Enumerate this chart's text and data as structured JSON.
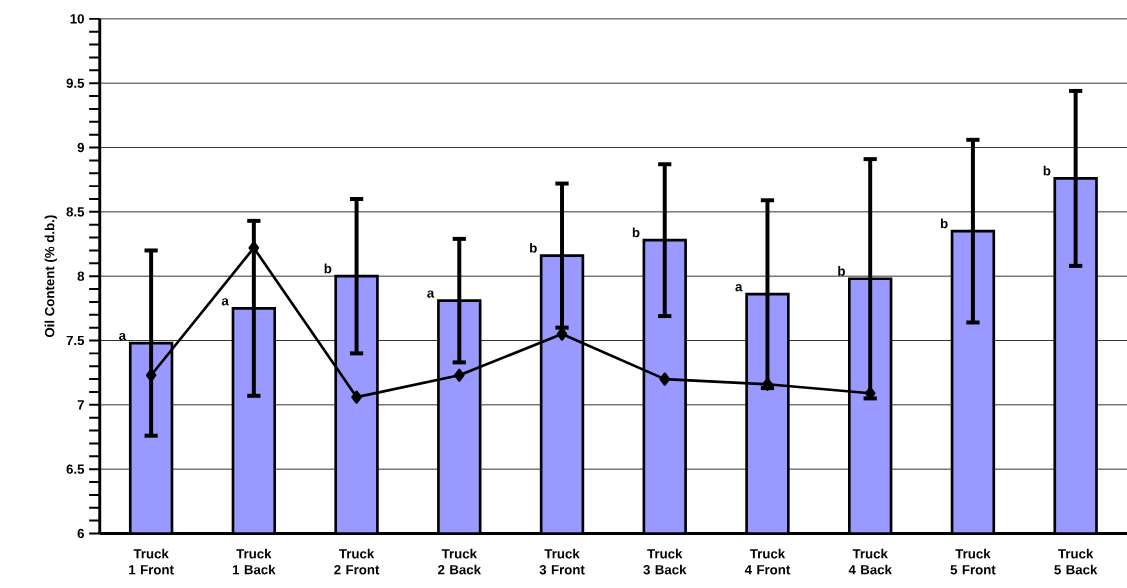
{
  "chart_data": {
    "type": "bar",
    "ylabel": "Oil Content (% d.b.)",
    "categories": [
      "Truck 1 Front",
      "Truck 1 Back",
      "Truck 2 Front",
      "Truck 2 Back",
      "Truck 3 Front",
      "Truck 3 Back",
      "Truck 4 Front",
      "Truck 4 Back",
      "Truck 5 Front",
      "Truck 5 Back"
    ],
    "series": [
      {
        "color": "#9999ff",
        "values": [
          7.48,
          7.75,
          8.0,
          7.81,
          8.16,
          8.28,
          7.86,
          7.98,
          8.35,
          8.76
        ],
        "errors": [
          0.72,
          0.68,
          0.6,
          0.48,
          0.56,
          0.59,
          0.73,
          0.93,
          0.71,
          0.68
        ]
      },
      {
        "type": "line",
        "color": "#000000",
        "values": [
          7.23,
          8.22,
          7.06,
          7.23,
          7.55,
          7.2,
          7.16,
          7.09,
          null,
          null
        ]
      }
    ],
    "ylim": [
      6,
      10
    ],
    "yticks": [
      6,
      6.5,
      7,
      7.5,
      8,
      8.5,
      9,
      9.5,
      10
    ],
    "grid": "y",
    "marker": "diamond",
    "line_style": "solid",
    "annotations": [
      {
        "text": "a",
        "x": "Truck 1 Front",
        "y": 7.48
      },
      {
        "text": "a",
        "x": "Truck 1 Back",
        "y": 7.75
      },
      {
        "text": "b",
        "x": "Truck 2 Front",
        "y": 8.0
      },
      {
        "text": "a",
        "x": "Truck 2 Back",
        "y": 7.81
      },
      {
        "text": "b",
        "x": "Truck 3 Front",
        "y": 8.16
      },
      {
        "text": "b",
        "x": "Truck 3 Back",
        "y": 8.28
      },
      {
        "text": "a",
        "x": "Truck 4 Front",
        "y": 7.86
      },
      {
        "text": "b",
        "x": "Truck 4 Back",
        "y": 7.98
      },
      {
        "text": "b",
        "x": "Truck 5 Front",
        "y": 8.35
      },
      {
        "text": "b",
        "x": "Truck 5 Back",
        "y": 8.76
      }
    ]
  }
}
